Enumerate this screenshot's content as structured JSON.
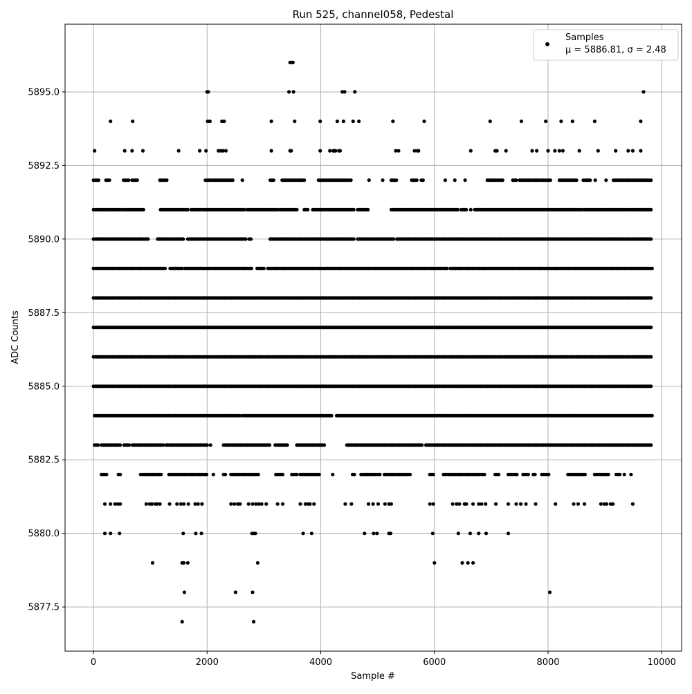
{
  "chart_data": {
    "type": "scatter",
    "title": "Run 525, channel058, Pedestal",
    "xlabel": "Sample #",
    "ylabel": "ADC Counts",
    "xlim": [
      -500,
      10350
    ],
    "ylim": [
      5876.0,
      5897.3
    ],
    "xticks": [
      0,
      2000,
      4000,
      6000,
      8000,
      10000
    ],
    "yticks": [
      5877.5,
      5880.0,
      5882.5,
      5885.0,
      5887.5,
      5890.0,
      5892.5,
      5895.0
    ],
    "grid": true,
    "legend": {
      "placement": "upper right",
      "entries": [
        {
          "label": "Samples",
          "stats": "μ = 5886.81, σ = 2.48",
          "color": "#000000",
          "marker": "circle"
        }
      ]
    },
    "n_samples": 9830,
    "series": [
      {
        "name": "Samples",
        "color": "#000000",
        "level_bands": [
          {
            "y": 5895,
            "x": [
              2000,
              2020,
              3440,
              3520,
              4380,
              4420,
              4600,
              9680
            ]
          },
          {
            "y": 5894,
            "x": [
              300,
              690,
              2010,
              2050,
              2260,
              2300,
              3130,
              3540,
              3990,
              4290,
              4400,
              4570,
              4670,
              5270,
              5820,
              6980,
              7530,
              7960,
              8230,
              8430,
              8820,
              9630
            ]
          },
          {
            "y": 5893,
            "x": [
              20,
              550,
              680,
              870,
              1500,
              1870,
              1980,
              2200,
              2240,
              2280,
              2330,
              3130,
              3460,
              3480,
              3990,
              4160,
              4220,
              4240,
              4260,
              4320,
              4340,
              5320,
              5370,
              5650,
              5700,
              5720,
              6640,
              7070,
              7100,
              7260,
              7720,
              7800,
              8000,
              8120,
              8200,
              8260,
              8550,
              8880,
              9190,
              9410,
              9490,
              9630
            ]
          },
          {
            "y": 5892,
            "bands": [
              [
                0,
                110
              ],
              [
                220,
                300
              ],
              [
                530,
                620
              ],
              [
                680,
                780
              ],
              [
                1170,
                1300
              ],
              [
                1970,
                2450
              ],
              [
                2620,
                2620
              ],
              [
                3110,
                3180
              ],
              [
                3320,
                3720
              ],
              [
                3960,
                4530
              ],
              [
                4850,
                4850
              ],
              [
                5090,
                5090
              ],
              [
                5240,
                5330
              ],
              [
                5600,
                5710
              ],
              [
                5770,
                5800
              ],
              [
                6190,
                6190
              ],
              [
                6360,
                6360
              ],
              [
                6540,
                6540
              ],
              [
                6930,
                7200
              ],
              [
                7380,
                7440
              ],
              [
                7500,
                8050
              ],
              [
                8200,
                8520
              ],
              [
                8620,
                8760
              ],
              [
                8830,
                8830
              ],
              [
                9020,
                9020
              ],
              [
                9150,
                9830
              ]
            ]
          },
          {
            "y": 5891,
            "bands": [
              [
                0,
                480
              ],
              [
                520,
                900
              ],
              [
                1180,
                1660
              ],
              [
                1720,
                2660
              ],
              [
                2700,
                3240
              ],
              [
                3280,
                3590
              ],
              [
                3710,
                3790
              ],
              [
                3860,
                4580
              ],
              [
                4650,
                4830
              ],
              [
                5240,
                5800
              ],
              [
                5810,
                6420
              ],
              [
                6470,
                6570
              ],
              [
                6640,
                6640
              ],
              [
                6710,
                8620
              ],
              [
                8640,
                9830
              ]
            ]
          },
          {
            "y": 5890,
            "bands": [
              [
                0,
                960
              ],
              [
                1130,
                1600
              ],
              [
                1660,
                2680
              ],
              [
                2740,
                2780
              ],
              [
                3110,
                4580
              ],
              [
                4650,
                5300
              ],
              [
                5340,
                9830
              ]
            ]
          },
          {
            "y": 5889,
            "bands": [
              [
                0,
                1280
              ],
              [
                1350,
                1580
              ],
              [
                1610,
                2800
              ],
              [
                2880,
                3010
              ],
              [
                3070,
                6240
              ],
              [
                6280,
                6700
              ],
              [
                6740,
                9830
              ]
            ]
          },
          {
            "y": 5888,
            "bands": [
              [
                0,
                9830
              ]
            ]
          },
          {
            "y": 5887,
            "bands": [
              [
                0,
                9830
              ]
            ]
          },
          {
            "y": 5886,
            "bands": [
              [
                0,
                9830
              ]
            ]
          },
          {
            "y": 5885,
            "bands": [
              [
                0,
                9830
              ]
            ]
          },
          {
            "y": 5884,
            "bands": [
              [
                20,
                1190
              ],
              [
                1200,
                2580
              ],
              [
                2630,
                4210
              ],
              [
                4280,
                9830
              ]
            ]
          },
          {
            "y": 5883,
            "bands": [
              [
                20,
                80
              ],
              [
                140,
                480
              ],
              [
                540,
                640
              ],
              [
                690,
                760
              ],
              [
                780,
                1230
              ],
              [
                1280,
                2000
              ],
              [
                2060,
                2080
              ],
              [
                2290,
                3100
              ],
              [
                3200,
                3430
              ],
              [
                3580,
                4070
              ],
              [
                4460,
                5780
              ],
              [
                5850,
                9830
              ]
            ]
          },
          {
            "y": 5882,
            "bands": [
              [
                140,
                240
              ],
              [
                440,
                480
              ],
              [
                830,
                1200
              ],
              [
                1330,
                2000
              ],
              [
                2110,
                2110
              ],
              [
                2290,
                2340
              ],
              [
                2420,
                2920
              ],
              [
                3210,
                3340
              ],
              [
                3490,
                3580
              ],
              [
                3640,
                3980
              ],
              [
                4210,
                4210
              ],
              [
                4560,
                4600
              ],
              [
                4710,
                5060
              ],
              [
                5120,
                5580
              ],
              [
                5920,
                6000
              ],
              [
                6160,
                6900
              ],
              [
                7070,
                7130
              ],
              [
                7300,
                7450
              ],
              [
                7560,
                7660
              ],
              [
                7740,
                7790
              ],
              [
                7890,
                8020
              ],
              [
                8350,
                8660
              ],
              [
                8820,
                9080
              ],
              [
                9200,
                9280
              ],
              [
                9340,
                9360
              ],
              [
                9460,
                9460
              ]
            ]
          },
          {
            "y": 5881,
            "x": [
              200,
              300,
              380,
              430,
              470,
              930,
              990,
              1030,
              1090,
              1120,
              1170,
              1340,
              1470,
              1540,
              1590,
              1670,
              1790,
              1840,
              1910,
              2420,
              2480,
              2540,
              2580,
              2730,
              2800,
              2860,
              2910,
              2960,
              3040,
              3240,
              3330,
              3640,
              3730,
              3780,
              3810,
              3880,
              4430,
              4540,
              4840,
              4920,
              5010,
              5130,
              5200,
              5240,
              5920,
              5980,
              6320,
              6390,
              6440,
              6530,
              6560,
              6680,
              6780,
              6830,
              6900,
              7080,
              7300,
              7440,
              7520,
              7610,
              7780,
              8130,
              8450,
              8530,
              8640,
              8930,
              8990,
              9030,
              9100,
              9140,
              9490
            ]
          },
          {
            "y": 5880,
            "x": [
              200,
              300,
              460,
              1580,
              1800,
              1900,
              2790,
              2820,
              2850,
              3690,
              3840,
              4770,
              4930,
              4990,
              5200,
              5230,
              5970,
              6420,
              6630,
              6780,
              6910,
              7300
            ]
          },
          {
            "y": 5879,
            "x": [
              1040,
              1560,
              1590,
              1660,
              2890,
              6000,
              6490,
              6590,
              6680
            ]
          },
          {
            "y": 5878,
            "x": [
              1600,
              2500,
              2800,
              8030
            ]
          },
          {
            "y": 5877,
            "x": [
              1560,
              2820
            ]
          },
          {
            "y": 5896,
            "x": [
              3460,
              3490,
              3510
            ]
          }
        ]
      }
    ]
  }
}
